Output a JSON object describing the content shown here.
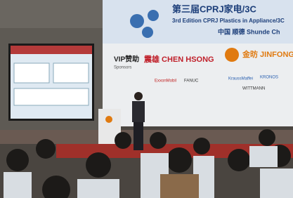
{
  "banner": {
    "title_cn": "第三届CPRJ家电/3C",
    "title_en": "3rd Edition CPRJ Plastics in Appliance/3C",
    "location": "中国 顺德 Shunde Ch",
    "vip_label": "VIP赞助",
    "vip_sub": "Sponsors",
    "sponsors": [
      "震雄 CHEN HSONG",
      "金昉 JINFONG"
    ],
    "partners": [
      "ExxonMobil",
      "FANUC",
      "KraussMaffei",
      "KRONOS",
      "WITTMANN"
    ]
  }
}
